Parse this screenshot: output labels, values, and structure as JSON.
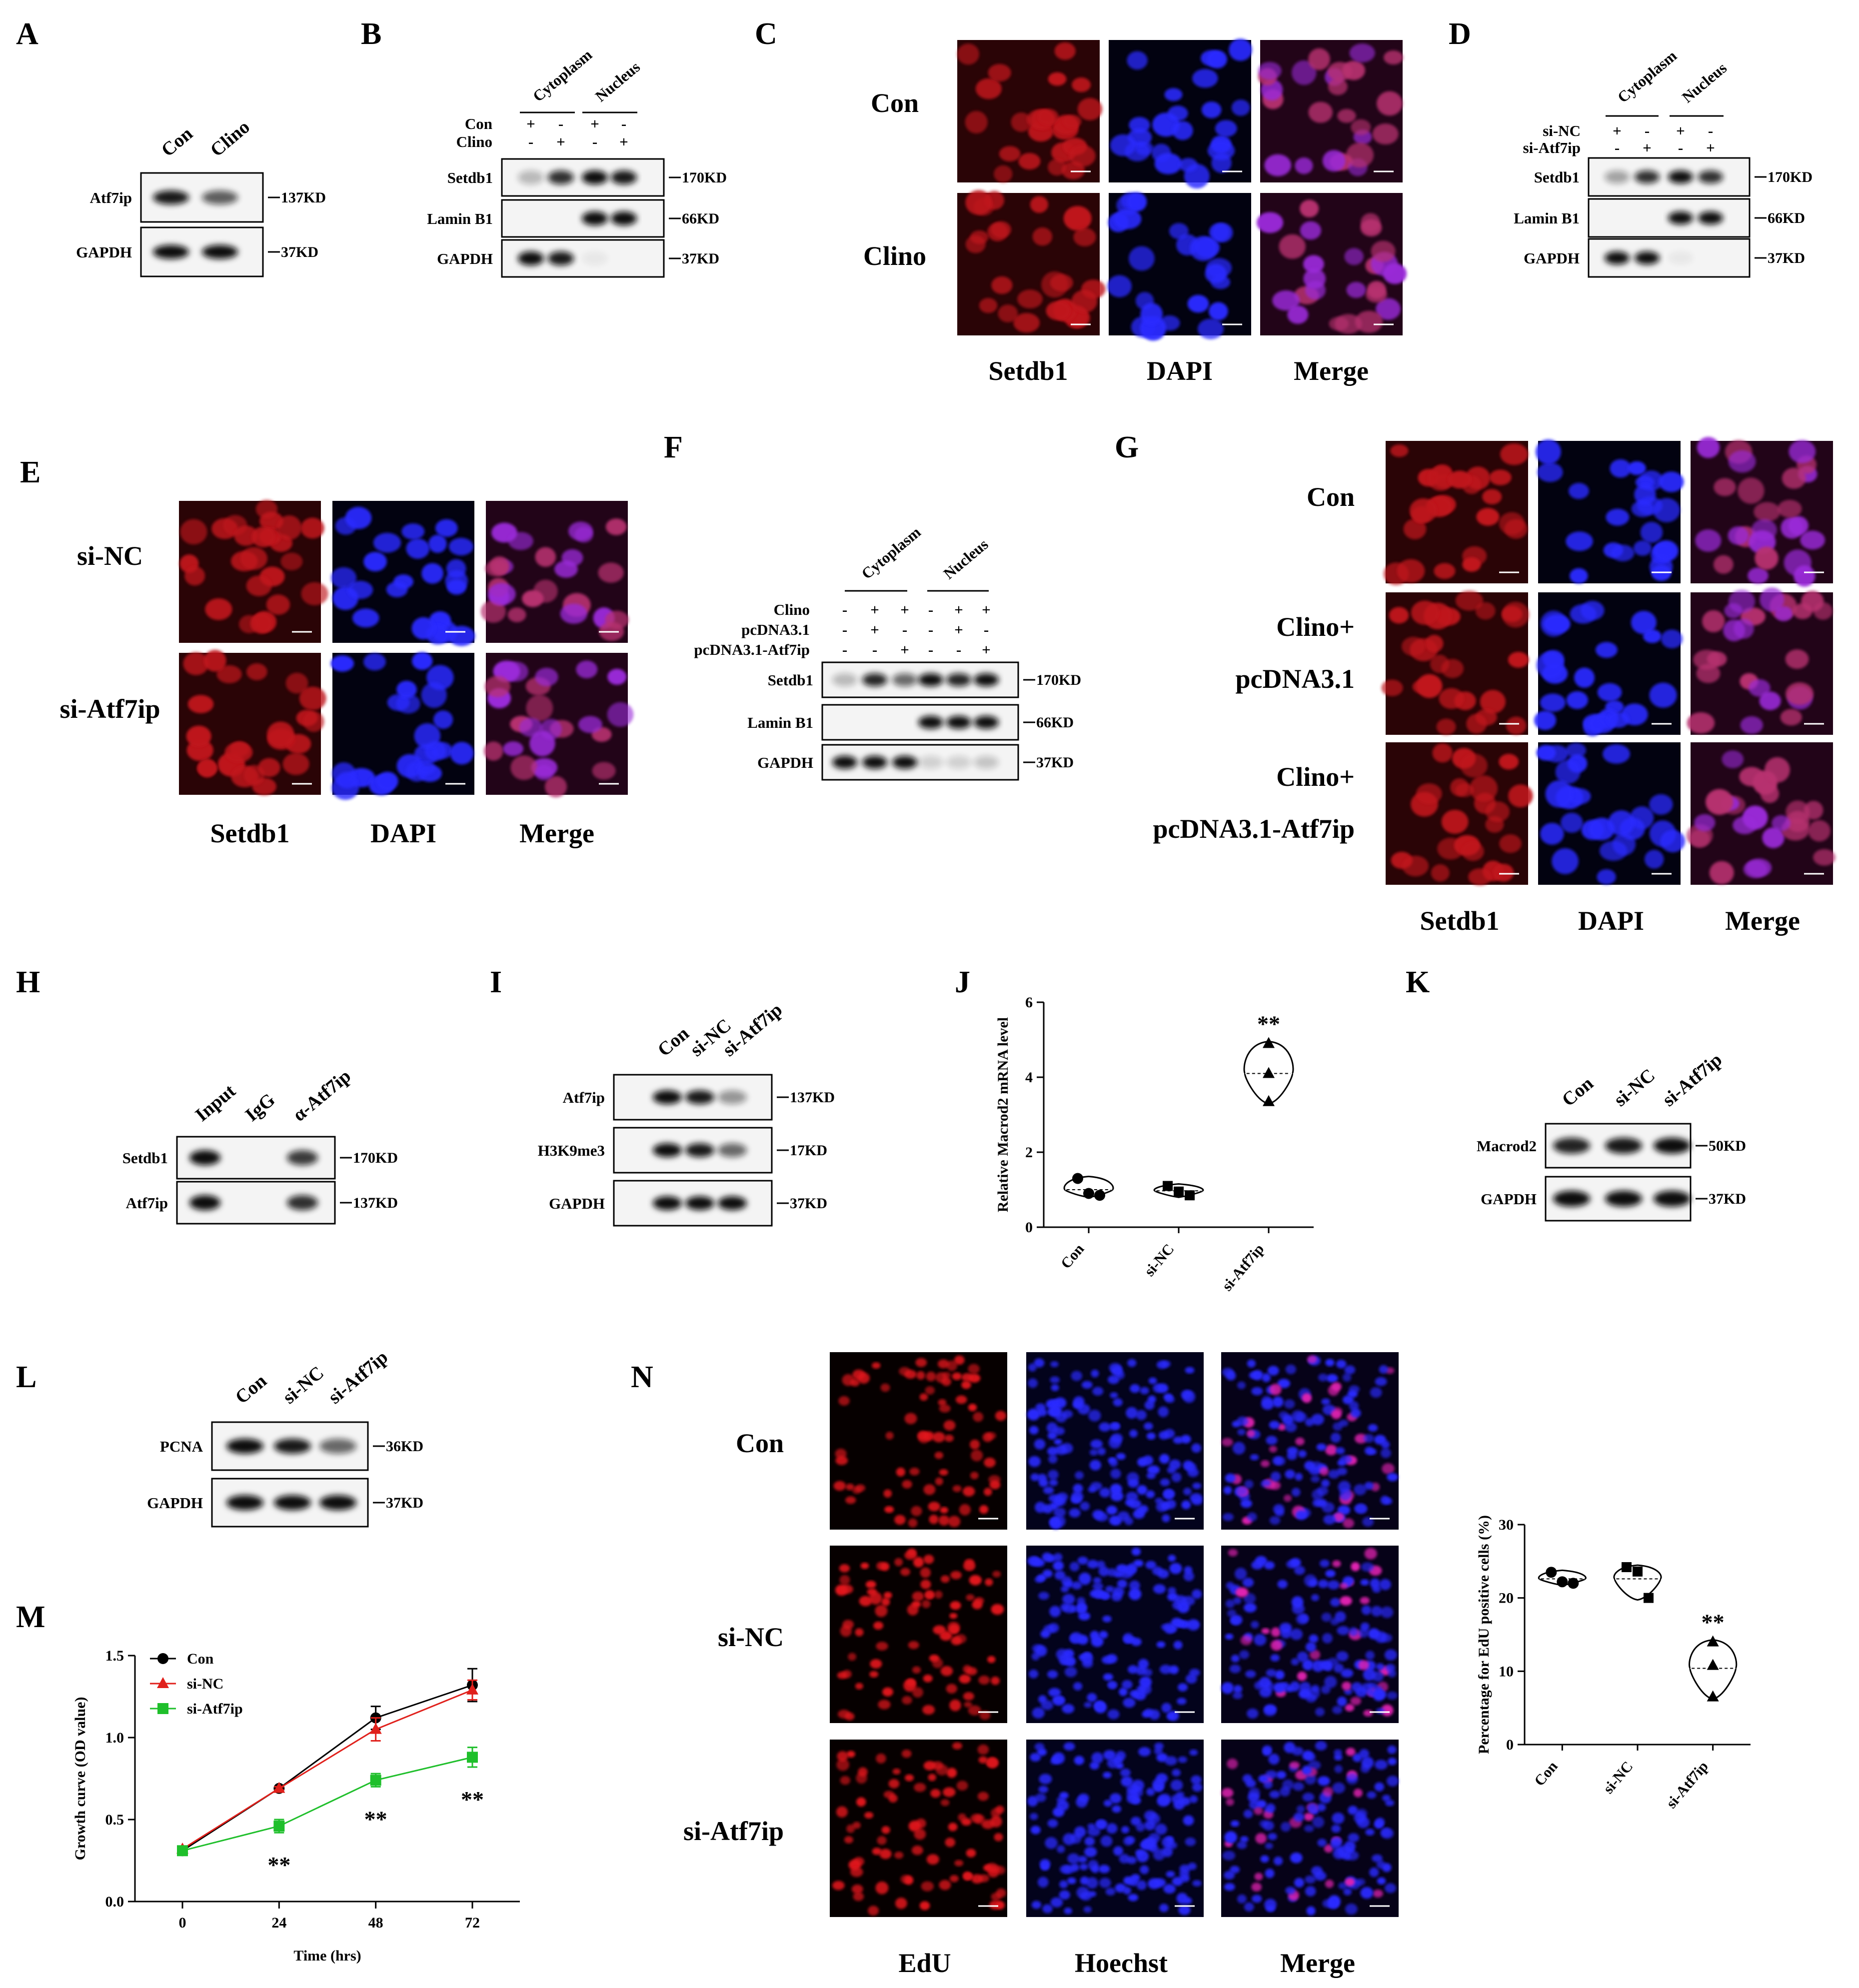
{
  "panels": {
    "A": {
      "letter": "A",
      "lanes": [
        "Con",
        "Clino"
      ],
      "rows": [
        {
          "label": "Atf7ip",
          "marker": "137KD",
          "bands": [
            0.95,
            0.65
          ]
        },
        {
          "label": "GAPDH",
          "marker": "37KD",
          "bands": [
            1,
            1
          ]
        }
      ]
    },
    "B": {
      "letter": "B",
      "groups": [
        "Cytoplasm",
        "Nucleus"
      ],
      "conditions": [
        {
          "label": "Con",
          "signs": [
            "+",
            "-",
            "+",
            "-"
          ]
        },
        {
          "label": "Clino",
          "signs": [
            "-",
            "+",
            "-",
            "+"
          ]
        }
      ],
      "rows": [
        {
          "label": "Setdb1",
          "marker": "170KD",
          "bands": [
            0.25,
            0.85,
            1,
            0.95
          ]
        },
        {
          "label": "Lamin B1",
          "marker": "66KD",
          "bands": [
            0,
            0,
            1,
            1
          ]
        },
        {
          "label": "GAPDH",
          "marker": "37KD",
          "bands": [
            1,
            0.95,
            0.05,
            0
          ]
        }
      ]
    },
    "C": {
      "letter": "C",
      "rows": [
        "Con",
        "Clino"
      ],
      "cols": [
        "Setdb1",
        "DAPI",
        "Merge"
      ]
    },
    "D": {
      "letter": "D",
      "groups": [
        "Cytoplasm",
        "Nucleus"
      ],
      "conditions": [
        {
          "label": "si-NC",
          "signs": [
            "+",
            "-",
            "+",
            "-"
          ]
        },
        {
          "label": "si-Atf7ip",
          "signs": [
            "-",
            "+",
            "-",
            "+"
          ]
        }
      ],
      "rows": [
        {
          "label": "Setdb1",
          "marker": "170KD",
          "bands": [
            0.35,
            0.85,
            1,
            0.85
          ]
        },
        {
          "label": "Lamin B1",
          "marker": "66KD",
          "bands": [
            0,
            0,
            1,
            1
          ]
        },
        {
          "label": "GAPDH",
          "marker": "37KD",
          "bands": [
            1,
            1,
            0.05,
            0
          ]
        }
      ]
    },
    "E": {
      "letter": "E",
      "rows": [
        "si-NC",
        "si-Atf7ip"
      ],
      "cols": [
        "Setdb1",
        "DAPI",
        "Merge"
      ]
    },
    "F": {
      "letter": "F",
      "groups": [
        "Cytoplasm",
        "Nucleus"
      ],
      "conditions": [
        {
          "label": "Clino",
          "signs": [
            "-",
            "+",
            "+",
            "-",
            "+",
            "+"
          ]
        },
        {
          "label": "pcDNA3.1",
          "signs": [
            "-",
            "+",
            "-",
            "-",
            "+",
            "-"
          ]
        },
        {
          "label": "pcDNA3.1-Atf7ip",
          "signs": [
            "-",
            "-",
            "+",
            "-",
            "-",
            "+"
          ]
        }
      ],
      "rows": [
        {
          "label": "Setdb1",
          "marker": "170KD",
          "bands": [
            0.25,
            0.9,
            0.6,
            1,
            0.9,
            1
          ]
        },
        {
          "label": "Lamin B1",
          "marker": "66KD",
          "bands": [
            0,
            0,
            0,
            1,
            1,
            1
          ]
        },
        {
          "label": "GAPDH",
          "marker": "37KD",
          "bands": [
            1,
            1,
            1,
            0.15,
            0.15,
            0.2
          ]
        }
      ]
    },
    "G": {
      "letter": "G",
      "rows": [
        {
          "line1": "Con",
          "line2": ""
        },
        {
          "line1": "Clino+",
          "line2": "pcDNA3.1"
        },
        {
          "line1": "Clino+",
          "line2": "pcDNA3.1-Atf7ip"
        }
      ],
      "cols": [
        "Setdb1",
        "DAPI",
        "Merge"
      ]
    },
    "H": {
      "letter": "H",
      "lanes": [
        "Input",
        "IgG",
        "α-Atf7ip"
      ],
      "rows": [
        {
          "label": "Setdb1",
          "marker": "170KD",
          "bands": [
            1,
            0,
            0.8
          ]
        },
        {
          "label": "Atf7ip",
          "marker": "137KD",
          "bands": [
            1,
            0,
            0.85
          ]
        }
      ]
    },
    "I": {
      "letter": "I",
      "lanes": [
        "Con",
        "si-NC",
        "si-Atf7ip"
      ],
      "rows": [
        {
          "label": "Atf7ip",
          "marker": "137KD",
          "bands": [
            1,
            0.95,
            0.4
          ]
        },
        {
          "label": "H3K9me3",
          "marker": "17KD",
          "bands": [
            1,
            0.95,
            0.6
          ]
        },
        {
          "label": "GAPDH",
          "marker": "37KD",
          "bands": [
            1,
            1,
            1
          ]
        }
      ]
    },
    "J": {
      "letter": "J",
      "ylabel": "Relative Macrod2  mRNA level",
      "categories": [
        "Con",
        "si-NC",
        "si-Atf7ip"
      ],
      "yticks": [
        "0",
        "2",
        "4",
        "6"
      ],
      "significance": [
        "",
        "",
        "**"
      ]
    },
    "K": {
      "letter": "K",
      "lanes": [
        "Con",
        "si-NC",
        "si-Atf7ip"
      ],
      "rows": [
        {
          "label": "Macrod2",
          "marker": "50KD",
          "bands": [
            0.9,
            0.95,
            1
          ]
        },
        {
          "label": "GAPDH",
          "marker": "37KD",
          "bands": [
            1,
            1,
            1
          ]
        }
      ]
    },
    "L": {
      "letter": "L",
      "lanes": [
        "Con",
        "si-NC",
        "si-Atf7ip"
      ],
      "rows": [
        {
          "label": "PCNA",
          "marker": "36KD",
          "bands": [
            1,
            0.95,
            0.6
          ]
        },
        {
          "label": "GAPDH",
          "marker": "37KD",
          "bands": [
            1,
            1,
            1
          ]
        }
      ]
    },
    "M": {
      "letter": "M",
      "ylabel": "Growth curve (OD value)",
      "xlabel": "Time (hrs)",
      "yticks": [
        "0.0",
        "0.5",
        "1.0",
        "1.5"
      ],
      "xticks": [
        "0",
        "24",
        "48",
        "72"
      ],
      "legend": [
        "Con",
        "si-NC",
        "si-Atf7ip"
      ],
      "significance": [
        "**",
        "**",
        "**"
      ]
    },
    "N": {
      "letter": "N",
      "rows": [
        "Con",
        "si-NC",
        "si-Atf7ip"
      ],
      "cols": [
        "EdU",
        "Hoechst",
        "Merge"
      ],
      "ylabel": "Percentage for EdU positive cells (%)",
      "categories": [
        "Con",
        "si-NC",
        "si-Atf7ip"
      ],
      "yticks": [
        "0",
        "10",
        "20",
        "30"
      ],
      "significance": [
        "",
        "",
        "**"
      ]
    }
  },
  "colors": {
    "con": "#000000",
    "si_nc": "#e0201b",
    "si_atf7ip": "#1fbf2b",
    "setdb1": "#c8141b",
    "dapi": "#2020e6",
    "merge": "#b030c8"
  },
  "chart_data": [
    {
      "panel": "J",
      "type": "violin-scatter",
      "categories": [
        "Con",
        "si-NC",
        "si-Atf7ip"
      ],
      "ylabel": "Relative Macrod2  mRNA level",
      "ylim": [
        0,
        6
      ],
      "series": [
        {
          "category": "Con",
          "values": [
            1.3,
            0.9,
            0.85
          ],
          "mean": 1.0
        },
        {
          "category": "si-NC",
          "values": [
            1.1,
            0.95,
            0.85
          ],
          "mean": 0.97
        },
        {
          "category": "si-Atf7ip",
          "values": [
            4.9,
            4.1,
            3.35
          ],
          "mean": 4.1
        }
      ],
      "significance": [
        "",
        "",
        "**"
      ]
    },
    {
      "panel": "M",
      "type": "line",
      "x": [
        0,
        24,
        48,
        72
      ],
      "xlabel": "Time (hrs)",
      "ylabel": "Growth curve (OD value)",
      "ylim": [
        0,
        1.5
      ],
      "legend_position": "top-left",
      "series": [
        {
          "name": "Con",
          "values": [
            0.31,
            0.69,
            1.12,
            1.32
          ],
          "errors": [
            0.01,
            0.01,
            0.07,
            0.1
          ]
        },
        {
          "name": "si-NC",
          "values": [
            0.32,
            0.69,
            1.05,
            1.29
          ],
          "errors": [
            0.01,
            0.01,
            0.07,
            0.06
          ]
        },
        {
          "name": "si-Atf7ip",
          "values": [
            0.31,
            0.46,
            0.74,
            0.88
          ],
          "errors": [
            0.01,
            0.04,
            0.04,
            0.06
          ]
        }
      ],
      "significance": [
        "",
        "**",
        "**",
        "**"
      ]
    },
    {
      "panel": "N",
      "type": "violin-scatter",
      "categories": [
        "Con",
        "si-NC",
        "si-Atf7ip"
      ],
      "ylabel": "Percentage for EdU positive cells (%)",
      "ylim": [
        0,
        30
      ],
      "series": [
        {
          "category": "Con",
          "values": [
            23.5,
            22.2,
            22.0
          ],
          "mean": 22.6
        },
        {
          "category": "si-NC",
          "values": [
            24.2,
            23.6,
            20.0
          ],
          "mean": 22.6
        },
        {
          "category": "si-Atf7ip",
          "values": [
            14.0,
            10.8,
            6.5
          ],
          "mean": 10.4
        }
      ],
      "significance": [
        "",
        "",
        "**"
      ]
    }
  ]
}
